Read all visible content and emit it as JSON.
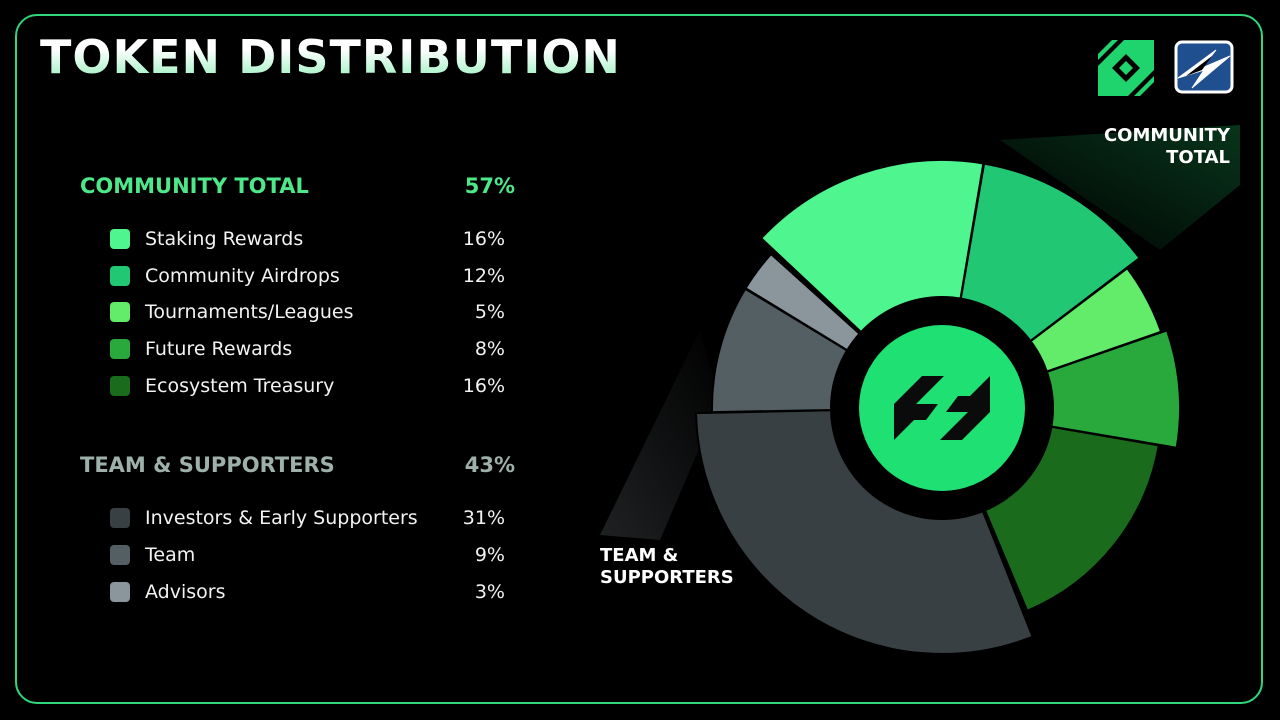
{
  "title": "TOKEN DISTRIBUTION",
  "groups": {
    "community": {
      "label": "COMMUNITY TOTAL",
      "pct": "57%"
    },
    "team": {
      "label": "TEAM & SUPPORTERS",
      "pct": "43%"
    }
  },
  "items": [
    {
      "label": "Staking Rewards",
      "pct": "16%",
      "color": "#4ff58f"
    },
    {
      "label": "Community Airdrops",
      "pct": "12%",
      "color": "#22c773"
    },
    {
      "label": "Tournaments/Leagues",
      "pct": "5%",
      "color": "#62ec6a"
    },
    {
      "label": "Future Rewards",
      "pct": "8%",
      "color": "#29a83c"
    },
    {
      "label": "Ecosystem Treasury",
      "pct": "16%",
      "color": "#1a6b1c"
    },
    {
      "label": "Investors & Early Supporters",
      "pct": "31%",
      "color": "#384043"
    },
    {
      "label": "Team",
      "pct": "9%",
      "color": "#545f64"
    },
    {
      "label": "Advisors",
      "pct": "3%",
      "color": "#8b969c"
    }
  ],
  "callouts": {
    "community_line1": "COMMUNITY",
    "community_line2": "TOTAL",
    "team_line1": "TEAM &",
    "team_line2": "SUPPORTERS"
  },
  "chart_data": {
    "type": "pie",
    "title": "TOKEN DISTRIBUTION",
    "categories": [
      "Staking Rewards",
      "Community Airdrops",
      "Tournaments/Leagues",
      "Future Rewards",
      "Ecosystem Treasury",
      "Investors & Early Supporters",
      "Team",
      "Advisors"
    ],
    "values": [
      16,
      12,
      5,
      8,
      16,
      31,
      9,
      3
    ],
    "groups": [
      {
        "name": "COMMUNITY TOTAL",
        "value": 57,
        "members": [
          "Staking Rewards",
          "Community Airdrops",
          "Tournaments/Leagues",
          "Future Rewards",
          "Ecosystem Treasury"
        ]
      },
      {
        "name": "TEAM & SUPPORTERS",
        "value": 43,
        "members": [
          "Investors & Early Supporters",
          "Team",
          "Advisors"
        ]
      }
    ],
    "legend": "left"
  }
}
